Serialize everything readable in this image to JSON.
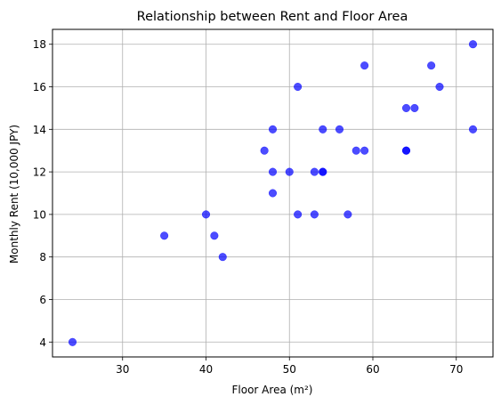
{
  "chart_data": {
    "type": "scatter",
    "title": "Relationship between Rent and Floor Area",
    "xlabel": "Floor Area (m²)",
    "ylabel": "Monthly Rent (10,000 JPY)",
    "xlim": [
      21.6,
      74.4
    ],
    "ylim": [
      3.3,
      18.7
    ],
    "xticks": [
      30,
      40,
      50,
      60,
      70
    ],
    "yticks": [
      4,
      6,
      8,
      10,
      12,
      14,
      16,
      18
    ],
    "grid": true,
    "legend": "none",
    "marker_color": "#0000ff",
    "marker_alpha": 0.7,
    "points": [
      {
        "x": 24,
        "y": 4
      },
      {
        "x": 35,
        "y": 9
      },
      {
        "x": 40,
        "y": 10
      },
      {
        "x": 41,
        "y": 9
      },
      {
        "x": 42,
        "y": 8
      },
      {
        "x": 47,
        "y": 13
      },
      {
        "x": 48,
        "y": 14
      },
      {
        "x": 48,
        "y": 12
      },
      {
        "x": 48,
        "y": 11
      },
      {
        "x": 50,
        "y": 12
      },
      {
        "x": 51,
        "y": 16
      },
      {
        "x": 51,
        "y": 10
      },
      {
        "x": 53,
        "y": 12
      },
      {
        "x": 53,
        "y": 10
      },
      {
        "x": 54,
        "y": 14
      },
      {
        "x": 54,
        "y": 12
      },
      {
        "x": 54,
        "y": 12
      },
      {
        "x": 56,
        "y": 14
      },
      {
        "x": 57,
        "y": 10
      },
      {
        "x": 58,
        "y": 13
      },
      {
        "x": 59,
        "y": 17
      },
      {
        "x": 59,
        "y": 13
      },
      {
        "x": 64,
        "y": 15
      },
      {
        "x": 64,
        "y": 13
      },
      {
        "x": 64,
        "y": 13
      },
      {
        "x": 65,
        "y": 15
      },
      {
        "x": 67,
        "y": 17
      },
      {
        "x": 68,
        "y": 16
      },
      {
        "x": 72,
        "y": 18
      },
      {
        "x": 72,
        "y": 14
      }
    ]
  }
}
